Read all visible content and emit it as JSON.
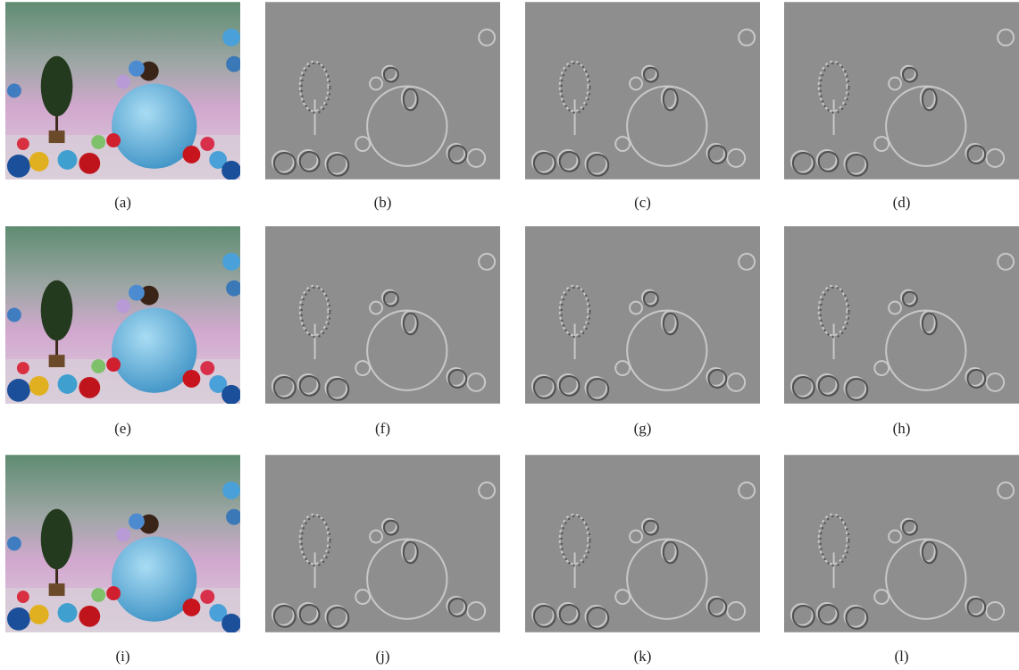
{
  "panels": [
    {
      "label": "(a)"
    },
    {
      "label": "(b)"
    },
    {
      "label": "(c)"
    },
    {
      "label": "(d)"
    },
    {
      "label": "(e)"
    },
    {
      "label": "(f)"
    },
    {
      "label": "(g)"
    },
    {
      "label": "(h)"
    },
    {
      "label": "(i)"
    },
    {
      "label": "(j)"
    },
    {
      "label": "(k)"
    },
    {
      "label": "(l)"
    }
  ]
}
